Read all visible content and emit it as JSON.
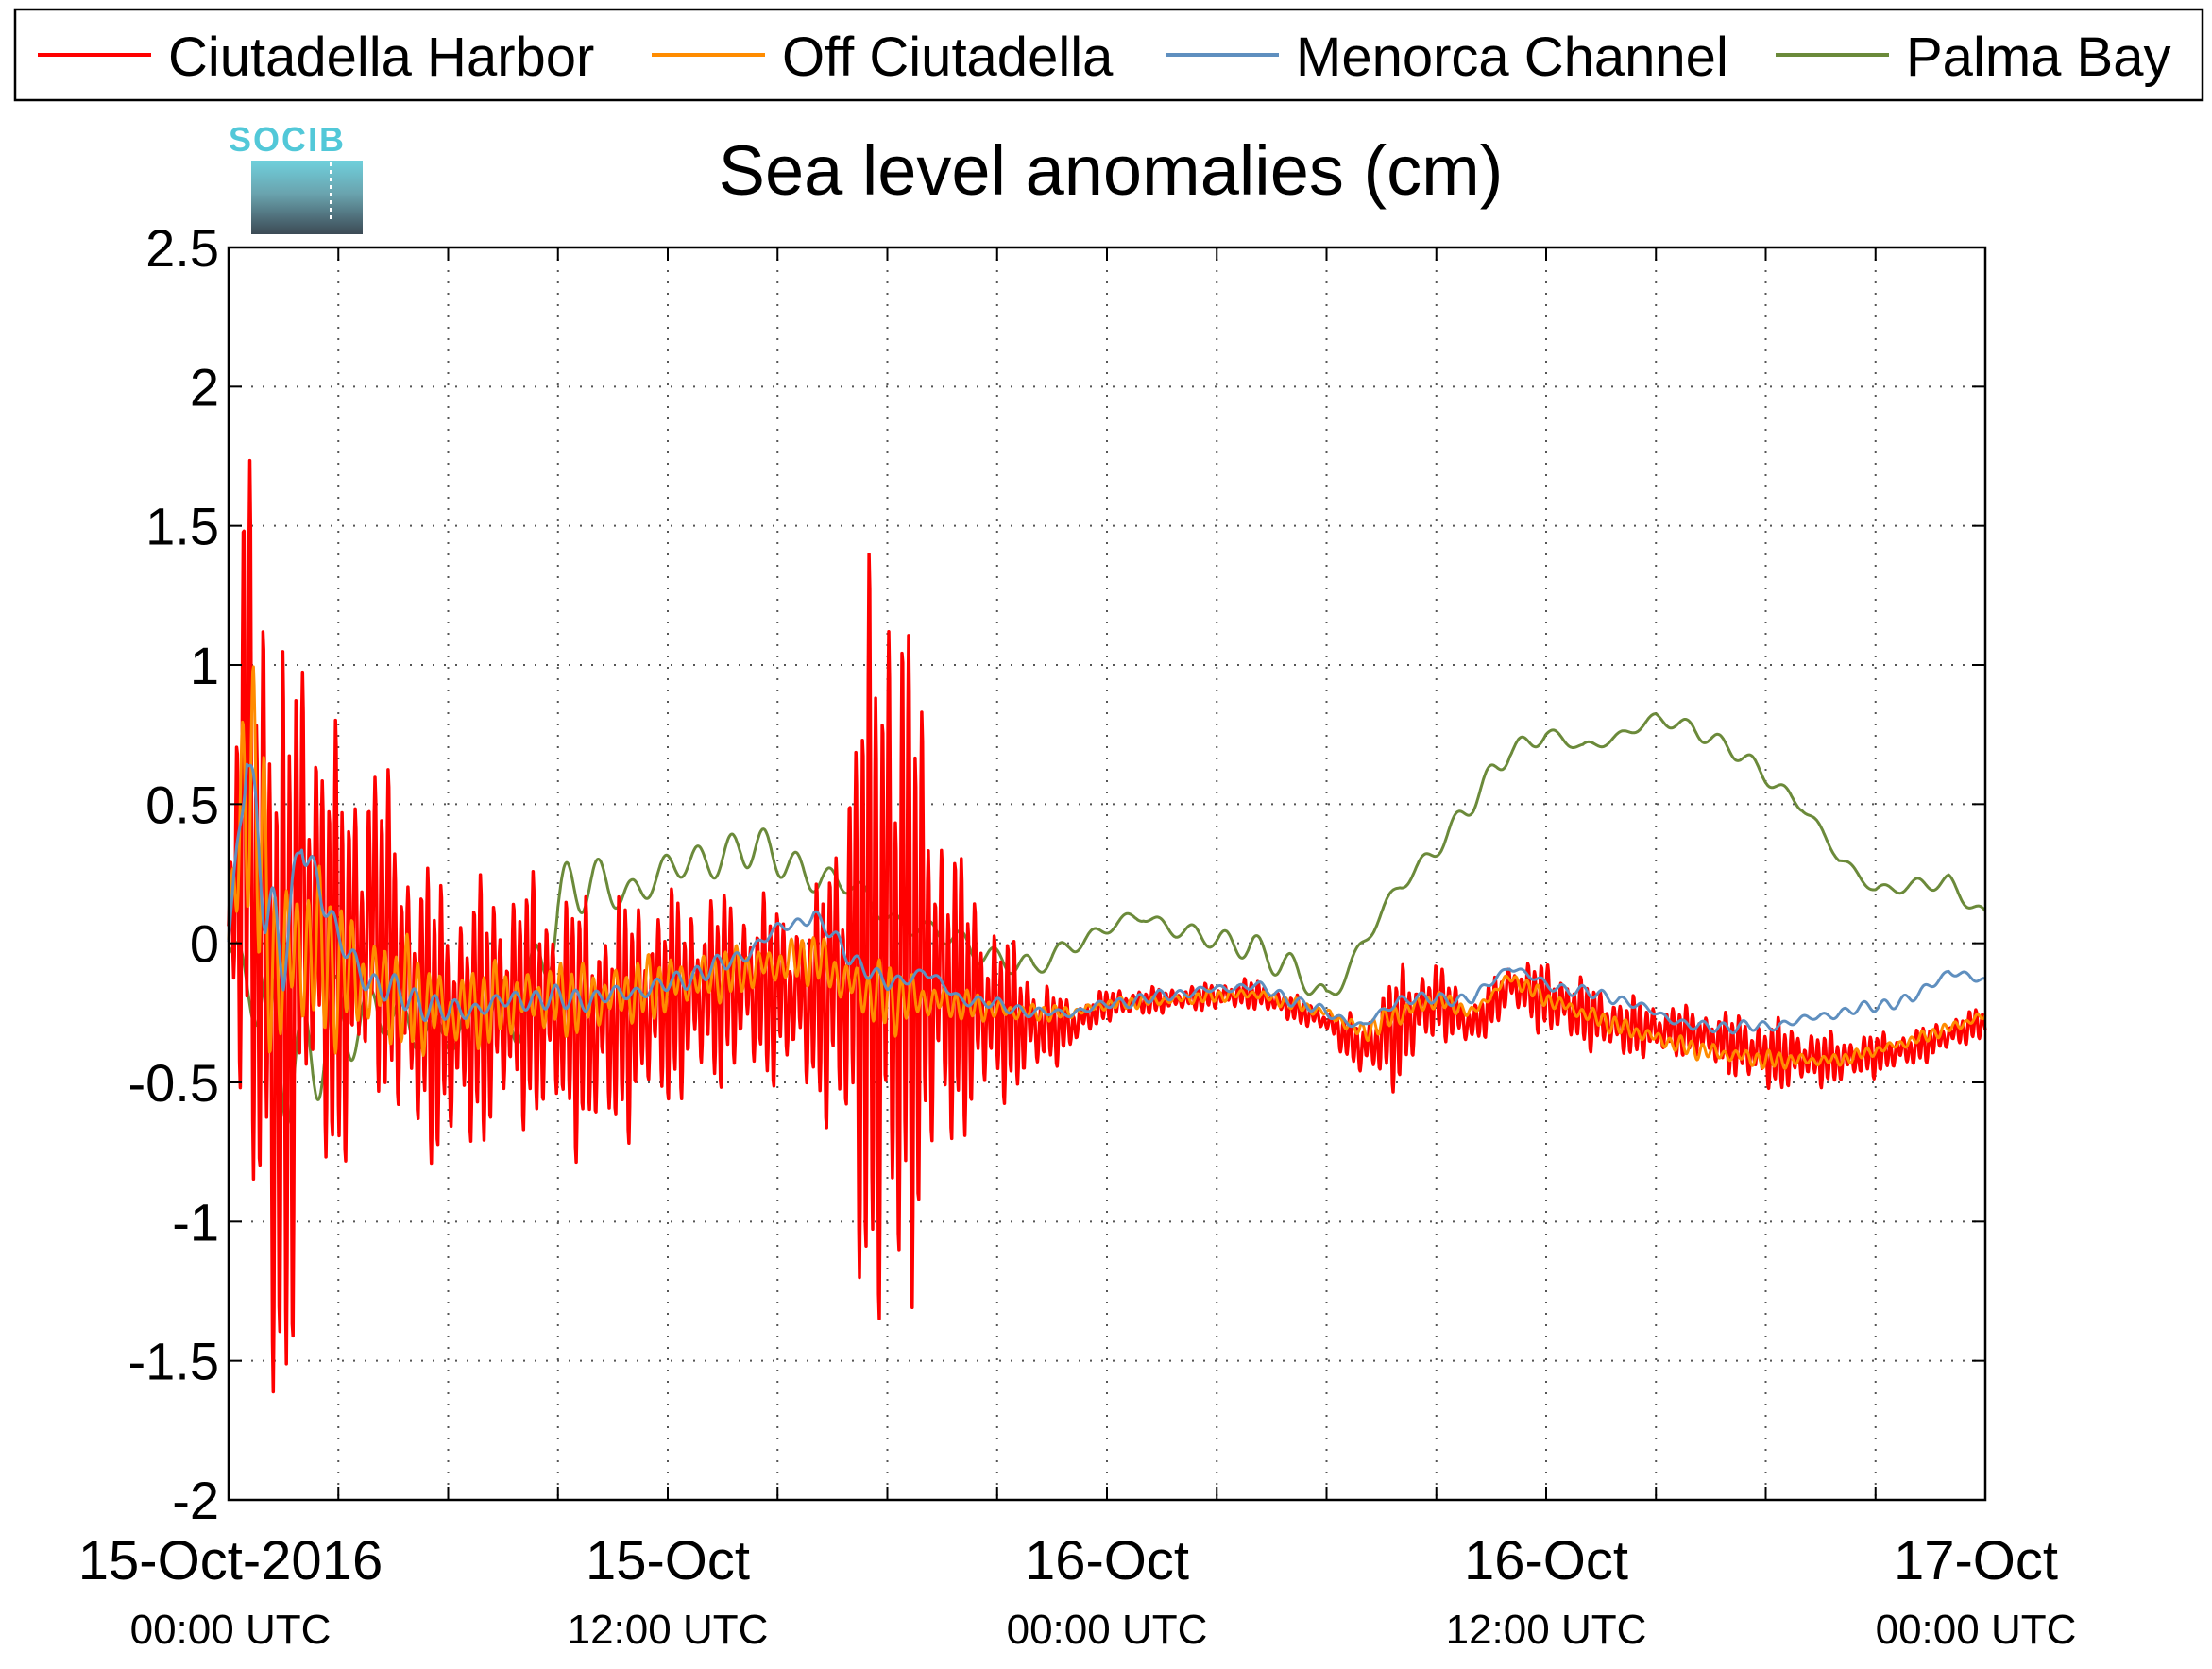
{
  "chart_data": {
    "type": "line",
    "title": "Sea level anomalies (cm)",
    "logo_text": "SOCIB",
    "xlabel": "",
    "ylabel": "",
    "ylim": [
      -2,
      2.5
    ],
    "yticks": [
      "2.5",
      "2",
      "1.5",
      "1",
      "0.5",
      "0",
      "-0.5",
      "-1",
      "-1.5",
      "-2"
    ],
    "xlim_hours": [
      0,
      48
    ],
    "xticks": [
      {
        "date": "15-Oct-2016",
        "time": "00:00 UTC"
      },
      {
        "date": "15-Oct",
        "time": "12:00 UTC"
      },
      {
        "date": "16-Oct",
        "time": "00:00 UTC"
      },
      {
        "date": "16-Oct",
        "time": "12:00 UTC"
      },
      {
        "date": "17-Oct",
        "time": "00:00 UTC"
      }
    ],
    "grid": true,
    "legend_position": "top",
    "series": [
      {
        "name": "Ciutadella Harbor",
        "color": "#ff0000",
        "x": [
          0,
          0.5,
          1,
          1.5,
          2,
          3,
          4,
          5,
          6,
          8,
          10,
          12,
          14,
          16,
          17,
          18,
          19,
          20,
          21,
          22,
          23,
          24,
          26,
          28,
          30,
          31,
          32,
          33,
          34,
          35,
          36,
          38,
          40,
          42,
          44,
          46,
          48
        ],
        "y": [
          0.05,
          0.6,
          -0.1,
          -0.5,
          0.2,
          -0.1,
          0.1,
          -0.2,
          -0.3,
          -0.2,
          -0.3,
          -0.2,
          -0.15,
          -0.2,
          -0.1,
          0.0,
          -0.1,
          -0.2,
          -0.25,
          -0.3,
          -0.3,
          -0.22,
          -0.2,
          -0.18,
          -0.28,
          -0.38,
          -0.3,
          -0.2,
          -0.3,
          -0.15,
          -0.2,
          -0.3,
          -0.32,
          -0.4,
          -0.42,
          -0.38,
          -0.28
        ],
        "amplitude": [
          0.05,
          1.2,
          1.7,
          1.3,
          0.9,
          0.7,
          0.55,
          0.5,
          0.45,
          0.4,
          0.42,
          0.35,
          0.3,
          0.3,
          0.8,
          1.6,
          0.8,
          0.45,
          0.3,
          0.18,
          0.08,
          0.05,
          0.04,
          0.05,
          0.04,
          0.1,
          0.2,
          0.12,
          0.08,
          0.08,
          0.12,
          0.1,
          0.08,
          0.12,
          0.08,
          0.06,
          0.05
        ]
      },
      {
        "name": "Off Ciutadella",
        "color": "#ff8c00",
        "x": [
          0,
          0.5,
          1,
          1.5,
          2,
          3,
          4,
          5,
          6,
          8,
          10,
          12,
          14,
          16,
          17,
          18,
          19,
          20,
          21,
          22,
          23,
          24,
          26,
          28,
          30,
          31,
          32,
          33,
          34,
          35,
          36,
          38,
          40,
          42,
          44,
          46,
          48
        ],
        "y": [
          0.0,
          0.7,
          0.1,
          -0.1,
          0.0,
          -0.1,
          -0.15,
          -0.2,
          -0.25,
          -0.2,
          -0.2,
          -0.15,
          -0.1,
          -0.05,
          -0.15,
          -0.2,
          -0.2,
          -0.22,
          -0.24,
          -0.25,
          -0.25,
          -0.22,
          -0.2,
          -0.18,
          -0.25,
          -0.32,
          -0.25,
          -0.2,
          -0.25,
          -0.12,
          -0.2,
          -0.3,
          -0.38,
          -0.42,
          -0.42,
          -0.35,
          -0.26
        ],
        "amplitude": [
          0.05,
          0.45,
          0.55,
          0.4,
          0.3,
          0.25,
          0.2,
          0.18,
          0.15,
          0.12,
          0.12,
          0.1,
          0.08,
          0.08,
          0.1,
          0.12,
          0.08,
          0.05,
          0.04,
          0.03,
          0.02,
          0.02,
          0.02,
          0.02,
          0.02,
          0.03,
          0.05,
          0.03,
          0.02,
          0.02,
          0.03,
          0.03,
          0.03,
          0.03,
          0.02,
          0.02,
          0.02
        ]
      },
      {
        "name": "Menorca Channel",
        "color": "#5f8fbf",
        "x": [
          0,
          0.5,
          1,
          1.5,
          2,
          3,
          4,
          5,
          6,
          8,
          10,
          12,
          14,
          15,
          16,
          17,
          18,
          19,
          20,
          21,
          22,
          23,
          24,
          26,
          28,
          30,
          31,
          32,
          33,
          34,
          35,
          36,
          38,
          40,
          42,
          44,
          46,
          47,
          48
        ],
        "y": [
          0.0,
          0.7,
          0.2,
          -0.1,
          0.4,
          0.0,
          -0.15,
          -0.2,
          -0.25,
          -0.2,
          -0.2,
          -0.15,
          -0.05,
          0.05,
          0.1,
          -0.05,
          -0.15,
          -0.1,
          -0.2,
          -0.22,
          -0.25,
          -0.25,
          -0.22,
          -0.18,
          -0.15,
          -0.25,
          -0.3,
          -0.2,
          -0.2,
          -0.2,
          -0.08,
          -0.15,
          -0.2,
          -0.3,
          -0.3,
          -0.25,
          -0.2,
          -0.1,
          -0.14
        ],
        "amplitude": [
          0.02,
          0.1,
          0.15,
          0.1,
          0.1,
          0.08,
          0.06,
          0.05,
          0.05,
          0.04,
          0.04,
          0.04,
          0.03,
          0.03,
          0.03,
          0.03,
          0.03,
          0.03,
          0.02,
          0.02,
          0.02,
          0.02,
          0.02,
          0.02,
          0.02,
          0.02,
          0.02,
          0.02,
          0.02,
          0.02,
          0.02,
          0.02,
          0.02,
          0.02,
          0.02,
          0.02,
          0.02,
          0.02,
          0.02
        ]
      },
      {
        "name": "Palma Bay",
        "color": "#6b8a3a",
        "x": [
          0,
          1,
          2,
          3,
          4,
          5,
          6,
          8,
          9,
          10,
          11,
          12,
          13,
          14,
          15,
          16,
          17,
          18,
          19,
          20,
          21,
          22,
          23,
          24,
          25,
          26,
          27,
          28,
          29,
          30,
          31,
          32,
          33,
          34,
          35,
          36,
          37,
          38,
          39,
          40,
          41,
          42,
          43,
          44,
          45,
          46,
          47,
          48
        ],
        "y": [
          -0.05,
          -0.2,
          -0.5,
          -0.3,
          -0.2,
          -0.35,
          -0.3,
          -0.25,
          0.15,
          0.2,
          0.2,
          0.25,
          0.3,
          0.35,
          0.3,
          0.25,
          0.2,
          0.1,
          0.05,
          0.0,
          -0.05,
          -0.1,
          0.0,
          0.05,
          0.1,
          0.05,
          0.0,
          0.0,
          -0.1,
          -0.2,
          0.0,
          0.2,
          0.35,
          0.5,
          0.7,
          0.75,
          0.7,
          0.75,
          0.8,
          0.78,
          0.7,
          0.6,
          0.5,
          0.3,
          0.2,
          0.2,
          0.22,
          0.1
        ],
        "amplitude": [
          0.05,
          0.2,
          0.25,
          0.2,
          0.15,
          0.15,
          0.1,
          0.12,
          0.15,
          0.12,
          0.1,
          0.1,
          0.08,
          0.08,
          0.07,
          0.06,
          0.06,
          0.06,
          0.05,
          0.05,
          0.04,
          0.04,
          0.04,
          0.04,
          0.04,
          0.04,
          0.04,
          0.05,
          0.06,
          0.06,
          0.05,
          0.04,
          0.04,
          0.04,
          0.04,
          0.03,
          0.03,
          0.03,
          0.03,
          0.03,
          0.03,
          0.03,
          0.03,
          0.03,
          0.03,
          0.03,
          0.03,
          0.02
        ]
      }
    ]
  }
}
